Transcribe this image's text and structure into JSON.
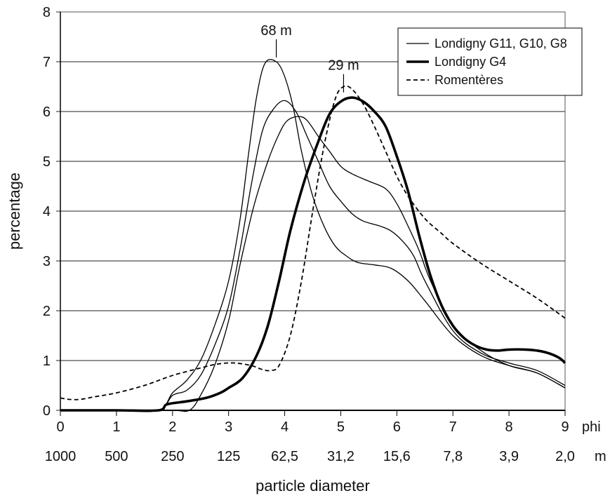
{
  "chart_data": {
    "type": "line",
    "title": "",
    "xlabel": "particle diameter",
    "ylabel": "percentage",
    "xlim": [
      0,
      9
    ],
    "ylim": [
      0,
      8
    ],
    "grid": "horizontal",
    "legend_position": "top-right",
    "x_ticks": [
      "0",
      "1",
      "2",
      "3",
      "4",
      "5",
      "6",
      "7",
      "8",
      "9"
    ],
    "x_tick_unit": "phi",
    "x_secondary_ticks": [
      "1000",
      "500",
      "250",
      "125",
      "62,5",
      "31,2",
      "15,6",
      "7,8",
      "3,9",
      "2,0"
    ],
    "x_secondary_unit": "m",
    "y_ticks": [
      "0",
      "1",
      "2",
      "3",
      "4",
      "5",
      "6",
      "7",
      "8"
    ],
    "annotations": [
      {
        "text": "68   m",
        "x": 3.85,
        "y": 7.0
      },
      {
        "text": "29   m",
        "x": 5.05,
        "y": 6.3
      }
    ],
    "legend": [
      {
        "label": "Londigny G11, G10, G8",
        "style": "thin"
      },
      {
        "label": "Londigny G4",
        "style": "thick"
      },
      {
        "label": "Romentères",
        "style": "dashed"
      }
    ],
    "series": [
      {
        "legend_index": 0,
        "style": "thin",
        "points": [
          [
            0,
            0
          ],
          [
            1,
            0
          ],
          [
            1.75,
            0
          ],
          [
            2.0,
            0.35
          ],
          [
            2.25,
            0.6
          ],
          [
            2.5,
            1.0
          ],
          [
            2.75,
            1.7
          ],
          [
            3.0,
            2.6
          ],
          [
            3.2,
            3.8
          ],
          [
            3.35,
            5.1
          ],
          [
            3.5,
            6.3
          ],
          [
            3.65,
            6.97
          ],
          [
            3.85,
            7.0
          ],
          [
            4.0,
            6.7
          ],
          [
            4.15,
            6.1
          ],
          [
            4.3,
            5.2
          ],
          [
            4.5,
            4.3
          ],
          [
            4.7,
            3.7
          ],
          [
            4.9,
            3.3
          ],
          [
            5.1,
            3.1
          ],
          [
            5.3,
            2.97
          ],
          [
            5.6,
            2.92
          ],
          [
            5.9,
            2.85
          ],
          [
            6.2,
            2.6
          ],
          [
            6.5,
            2.2
          ],
          [
            7.0,
            1.5
          ],
          [
            7.5,
            1.1
          ],
          [
            8.0,
            0.9
          ],
          [
            8.5,
            0.75
          ],
          [
            9.0,
            0.45
          ]
        ]
      },
      {
        "legend_index": 0,
        "style": "thin",
        "points": [
          [
            0,
            0
          ],
          [
            1,
            0
          ],
          [
            1.75,
            0
          ],
          [
            2.0,
            0.3
          ],
          [
            2.25,
            0.4
          ],
          [
            2.5,
            0.7
          ],
          [
            2.75,
            1.3
          ],
          [
            3.0,
            2.1
          ],
          [
            3.2,
            3.2
          ],
          [
            3.4,
            4.5
          ],
          [
            3.6,
            5.6
          ],
          [
            3.8,
            6.05
          ],
          [
            4.0,
            6.22
          ],
          [
            4.2,
            6.0
          ],
          [
            4.4,
            5.5
          ],
          [
            4.6,
            5.0
          ],
          [
            4.8,
            4.5
          ],
          [
            5.0,
            4.2
          ],
          [
            5.2,
            3.95
          ],
          [
            5.4,
            3.8
          ],
          [
            5.7,
            3.7
          ],
          [
            5.9,
            3.6
          ],
          [
            6.1,
            3.4
          ],
          [
            6.3,
            3.1
          ],
          [
            6.5,
            2.6
          ],
          [
            7.0,
            1.6
          ],
          [
            7.5,
            1.15
          ],
          [
            8.0,
            0.95
          ],
          [
            8.5,
            0.8
          ],
          [
            9.0,
            0.5
          ]
        ]
      },
      {
        "legend_index": 0,
        "style": "thin",
        "points": [
          [
            0,
            0
          ],
          [
            1,
            0
          ],
          [
            2.0,
            0
          ],
          [
            2.3,
            0
          ],
          [
            2.5,
            0.3
          ],
          [
            2.75,
            0.9
          ],
          [
            3.0,
            1.8
          ],
          [
            3.2,
            2.9
          ],
          [
            3.45,
            4.1
          ],
          [
            3.7,
            5.0
          ],
          [
            3.9,
            5.55
          ],
          [
            4.05,
            5.82
          ],
          [
            4.25,
            5.9
          ],
          [
            4.4,
            5.82
          ],
          [
            4.6,
            5.5
          ],
          [
            4.8,
            5.2
          ],
          [
            5.0,
            4.9
          ],
          [
            5.2,
            4.75
          ],
          [
            5.5,
            4.6
          ],
          [
            5.8,
            4.45
          ],
          [
            6.0,
            4.15
          ],
          [
            6.2,
            3.7
          ],
          [
            6.4,
            3.2
          ],
          [
            6.6,
            2.6
          ],
          [
            7.0,
            1.7
          ],
          [
            7.5,
            1.2
          ],
          [
            8.0,
            0.9
          ],
          [
            8.5,
            0.75
          ],
          [
            9.0,
            0.45
          ]
        ]
      },
      {
        "legend_index": 1,
        "style": "thick",
        "points": [
          [
            0,
            0
          ],
          [
            1,
            0
          ],
          [
            1.75,
            0
          ],
          [
            1.9,
            0.12
          ],
          [
            2.25,
            0.18
          ],
          [
            2.6,
            0.25
          ],
          [
            2.85,
            0.35
          ],
          [
            3.0,
            0.45
          ],
          [
            3.25,
            0.65
          ],
          [
            3.5,
            1.1
          ],
          [
            3.7,
            1.7
          ],
          [
            3.9,
            2.6
          ],
          [
            4.1,
            3.6
          ],
          [
            4.35,
            4.6
          ],
          [
            4.6,
            5.4
          ],
          [
            4.8,
            5.95
          ],
          [
            5.0,
            6.2
          ],
          [
            5.2,
            6.28
          ],
          [
            5.4,
            6.2
          ],
          [
            5.6,
            6.0
          ],
          [
            5.8,
            5.7
          ],
          [
            6.0,
            5.1
          ],
          [
            6.2,
            4.4
          ],
          [
            6.4,
            3.5
          ],
          [
            6.6,
            2.7
          ],
          [
            6.8,
            2.1
          ],
          [
            7.0,
            1.7
          ],
          [
            7.2,
            1.45
          ],
          [
            7.4,
            1.3
          ],
          [
            7.6,
            1.22
          ],
          [
            7.8,
            1.2
          ],
          [
            8.0,
            1.22
          ],
          [
            8.3,
            1.22
          ],
          [
            8.5,
            1.2
          ],
          [
            8.7,
            1.15
          ],
          [
            8.9,
            1.05
          ],
          [
            9.0,
            0.95
          ]
        ]
      },
      {
        "legend_index": 2,
        "style": "dashed",
        "points": [
          [
            0,
            0.25
          ],
          [
            0.15,
            0.22
          ],
          [
            0.35,
            0.22
          ],
          [
            0.6,
            0.27
          ],
          [
            1.0,
            0.35
          ],
          [
            1.5,
            0.5
          ],
          [
            2.0,
            0.7
          ],
          [
            2.5,
            0.85
          ],
          [
            2.8,
            0.93
          ],
          [
            3.1,
            0.95
          ],
          [
            3.4,
            0.9
          ],
          [
            3.6,
            0.82
          ],
          [
            3.75,
            0.8
          ],
          [
            3.9,
            0.9
          ],
          [
            4.1,
            1.5
          ],
          [
            4.3,
            2.6
          ],
          [
            4.5,
            4.0
          ],
          [
            4.7,
            5.3
          ],
          [
            4.9,
            6.25
          ],
          [
            5.05,
            6.5
          ],
          [
            5.2,
            6.45
          ],
          [
            5.4,
            6.15
          ],
          [
            5.6,
            5.7
          ],
          [
            5.8,
            5.2
          ],
          [
            6.0,
            4.7
          ],
          [
            6.2,
            4.3
          ],
          [
            6.5,
            3.85
          ],
          [
            6.8,
            3.55
          ],
          [
            7.0,
            3.35
          ],
          [
            7.5,
            2.95
          ],
          [
            8.0,
            2.6
          ],
          [
            8.5,
            2.25
          ],
          [
            9.0,
            1.85
          ]
        ]
      }
    ]
  }
}
